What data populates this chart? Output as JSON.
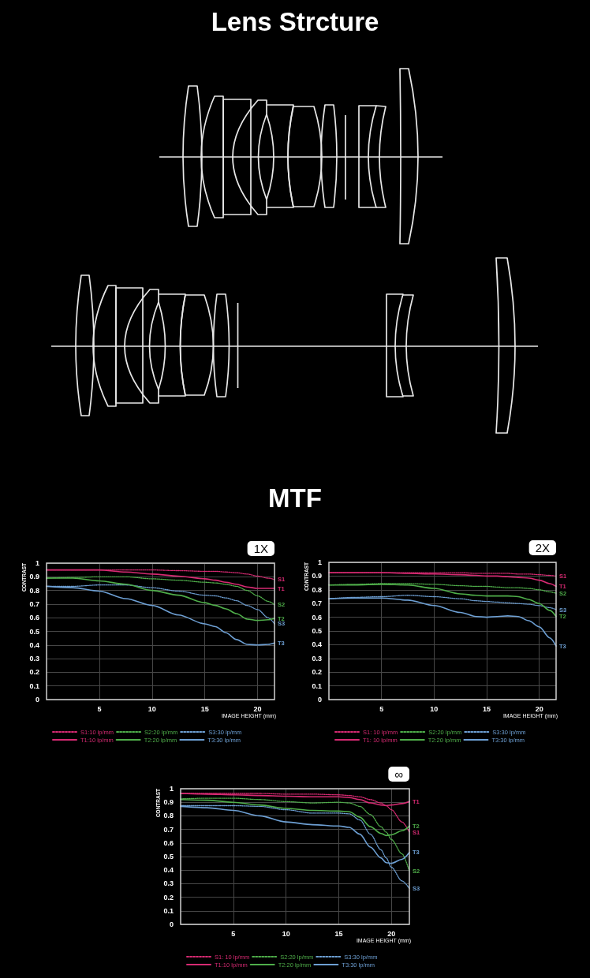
{
  "chart_data": [
    {
      "type": "other",
      "title": "Lens Strcture"
    },
    {
      "type": "other",
      "title": "MTF"
    },
    {
      "type": "line",
      "title": "1X",
      "xlabel": "IMAGE HEIGHT (mm)",
      "ylabel": "CONTRAST",
      "x": [
        0,
        2.5,
        5,
        7.5,
        10,
        12.5,
        15,
        16,
        17,
        18,
        19,
        20,
        21,
        21.6
      ],
      "series": [
        {
          "name": "S1:10 lp/mm",
          "color": "#d62a72",
          "line_style": "dotted",
          "values": [
            0.95,
            0.95,
            0.95,
            0.95,
            0.95,
            0.945,
            0.94,
            0.94,
            0.935,
            0.93,
            0.92,
            0.905,
            0.89,
            0.88
          ]
        },
        {
          "name": "S2:20 lp/mm",
          "color": "#4fae4a",
          "line_style": "dotted",
          "values": [
            0.89,
            0.895,
            0.9,
            0.9,
            0.885,
            0.875,
            0.86,
            0.855,
            0.845,
            0.83,
            0.8,
            0.76,
            0.72,
            0.695
          ]
        },
        {
          "name": "S3:30 lp/mm",
          "color": "#6d9fd3",
          "line_style": "dotted",
          "values": [
            0.83,
            0.83,
            0.84,
            0.84,
            0.82,
            0.795,
            0.765,
            0.76,
            0.745,
            0.725,
            0.69,
            0.66,
            0.6,
            0.555
          ]
        },
        {
          "name": "T1:10 lp/mm",
          "color": "#d62a72",
          "line_style": "solid",
          "values": [
            0.95,
            0.95,
            0.95,
            0.935,
            0.92,
            0.905,
            0.885,
            0.875,
            0.86,
            0.845,
            0.825,
            0.815,
            0.815,
            0.815
          ]
        },
        {
          "name": "T2:20 lp/mm",
          "color": "#4fae4a",
          "line_style": "solid",
          "values": [
            0.89,
            0.89,
            0.87,
            0.845,
            0.8,
            0.765,
            0.71,
            0.69,
            0.665,
            0.63,
            0.59,
            0.58,
            0.585,
            0.595
          ]
        },
        {
          "name": "T3:30 lp/mm",
          "color": "#6d9fd3",
          "line_style": "solid",
          "values": [
            0.83,
            0.82,
            0.795,
            0.74,
            0.69,
            0.62,
            0.555,
            0.535,
            0.49,
            0.44,
            0.405,
            0.4,
            0.405,
            0.415
          ]
        }
      ],
      "xlim": [
        0,
        21.6
      ],
      "ylim": [
        0,
        1
      ],
      "xticks": [
        5,
        10,
        15,
        20
      ],
      "yticks": [
        0,
        0.1,
        0.2,
        0.3,
        0.4,
        0.5,
        0.6,
        0.7,
        0.8,
        0.9,
        1
      ],
      "grid": true,
      "legend": "bottom",
      "annotations": [
        "S1",
        "S2",
        "S3",
        "T1",
        "T2",
        "T3"
      ]
    },
    {
      "type": "line",
      "title": "2X",
      "xlabel": "IMAGE HEIGHT (mm)",
      "ylabel": "CONTRAST",
      "x": [
        0,
        2.5,
        5,
        7.5,
        10,
        12.5,
        14,
        15,
        16,
        17,
        18,
        19,
        20,
        21,
        21.6
      ],
      "series": [
        {
          "name": "S1: 10 lp/mm",
          "color": "#d62a72",
          "line_style": "dotted",
          "values": [
            0.925,
            0.925,
            0.925,
            0.925,
            0.925,
            0.925,
            0.92,
            0.92,
            0.92,
            0.92,
            0.915,
            0.915,
            0.91,
            0.905,
            0.9
          ]
        },
        {
          "name": "S2:20 lp/mm",
          "color": "#4fae4a",
          "line_style": "dotted",
          "values": [
            0.835,
            0.84,
            0.845,
            0.845,
            0.84,
            0.83,
            0.825,
            0.825,
            0.82,
            0.815,
            0.815,
            0.81,
            0.8,
            0.785,
            0.775
          ]
        },
        {
          "name": "S3:30 lp/mm",
          "color": "#6d9fd3",
          "line_style": "dotted",
          "values": [
            0.735,
            0.745,
            0.75,
            0.76,
            0.75,
            0.735,
            0.72,
            0.715,
            0.71,
            0.705,
            0.7,
            0.695,
            0.685,
            0.67,
            0.655
          ]
        },
        {
          "name": "T1: 10 lp/mm",
          "color": "#d62a72",
          "line_style": "solid",
          "values": [
            0.925,
            0.925,
            0.925,
            0.92,
            0.915,
            0.91,
            0.905,
            0.9,
            0.9,
            0.895,
            0.89,
            0.885,
            0.87,
            0.845,
            0.825
          ]
        },
        {
          "name": "T2:20 lp/mm",
          "color": "#4fae4a",
          "line_style": "solid",
          "values": [
            0.835,
            0.835,
            0.84,
            0.835,
            0.81,
            0.77,
            0.76,
            0.755,
            0.755,
            0.755,
            0.75,
            0.73,
            0.7,
            0.65,
            0.605
          ]
        },
        {
          "name": "T3:30 lp/mm",
          "color": "#6d9fd3",
          "line_style": "solid",
          "values": [
            0.735,
            0.74,
            0.74,
            0.725,
            0.685,
            0.635,
            0.605,
            0.6,
            0.605,
            0.61,
            0.605,
            0.575,
            0.53,
            0.45,
            0.39
          ]
        }
      ],
      "xlim": [
        0,
        21.6
      ],
      "ylim": [
        0,
        1
      ],
      "xticks": [
        5,
        10,
        15,
        20
      ],
      "yticks": [
        0,
        0.1,
        0.2,
        0.3,
        0.4,
        0.5,
        0.6,
        0.7,
        0.8,
        0.9,
        1
      ],
      "grid": true,
      "legend": "bottom",
      "annotations": [
        "S1",
        "S2",
        "S3",
        "T1",
        "T2",
        "T3"
      ]
    },
    {
      "type": "line",
      "title": "∞",
      "xlabel": "IMAGE HEIGHT (mm)",
      "ylabel": "CONTRAST",
      "x": [
        0,
        2.5,
        5,
        7.5,
        10,
        12.5,
        15,
        16,
        17,
        18,
        19,
        19.5,
        20,
        21,
        21.7
      ],
      "series": [
        {
          "name": "S1: 10 lp/mm",
          "color": "#d62a72",
          "line_style": "dotted",
          "values": [
            0.965,
            0.965,
            0.965,
            0.965,
            0.96,
            0.96,
            0.955,
            0.95,
            0.94,
            0.92,
            0.895,
            0.875,
            0.845,
            0.755,
            0.68
          ]
        },
        {
          "name": "S2:20 lp/mm",
          "color": "#4fae4a",
          "line_style": "dotted",
          "values": [
            0.925,
            0.93,
            0.93,
            0.92,
            0.905,
            0.895,
            0.9,
            0.895,
            0.87,
            0.81,
            0.72,
            0.68,
            0.625,
            0.52,
            0.39
          ]
        },
        {
          "name": "S3:30 lp/mm",
          "color": "#6d9fd3",
          "line_style": "dotted",
          "values": [
            0.875,
            0.875,
            0.875,
            0.87,
            0.845,
            0.82,
            0.82,
            0.815,
            0.77,
            0.665,
            0.55,
            0.49,
            0.42,
            0.32,
            0.265
          ]
        },
        {
          "name": "T1:10 lp/mm",
          "color": "#d62a72",
          "line_style": "solid",
          "values": [
            0.965,
            0.96,
            0.955,
            0.95,
            0.945,
            0.94,
            0.94,
            0.935,
            0.92,
            0.895,
            0.88,
            0.875,
            0.88,
            0.89,
            0.905
          ]
        },
        {
          "name": "T2:20 lp/mm",
          "color": "#4fae4a",
          "line_style": "solid",
          "values": [
            0.92,
            0.915,
            0.9,
            0.88,
            0.855,
            0.84,
            0.835,
            0.83,
            0.79,
            0.72,
            0.67,
            0.655,
            0.66,
            0.69,
            0.725
          ]
        },
        {
          "name": "T3:30 lp/mm",
          "color": "#6d9fd3",
          "line_style": "solid",
          "values": [
            0.87,
            0.86,
            0.84,
            0.8,
            0.755,
            0.735,
            0.725,
            0.715,
            0.665,
            0.57,
            0.49,
            0.455,
            0.45,
            0.48,
            0.53
          ]
        }
      ],
      "xlim": [
        0,
        21.7
      ],
      "ylim": [
        0,
        1
      ],
      "xticks": [
        5,
        10,
        15,
        20
      ],
      "yticks": [
        0,
        0.1,
        0.2,
        0.3,
        0.4,
        0.5,
        0.6,
        0.7,
        0.8,
        0.9,
        1
      ],
      "grid": true,
      "legend": "bottom",
      "annotations": [
        "S1",
        "S2",
        "S3",
        "T1",
        "T2",
        "T3"
      ]
    }
  ]
}
